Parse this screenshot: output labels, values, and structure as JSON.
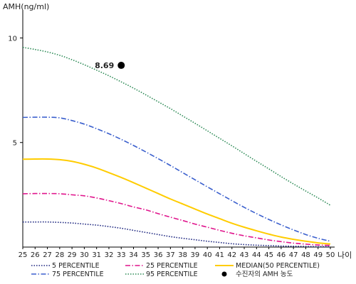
{
  "chart_data": {
    "type": "line",
    "ylabel": "AMH(ng/ml)",
    "xlabel": "나이",
    "xlim": [
      25,
      50
    ],
    "ylim": [
      0,
      11
    ],
    "yticks": [
      5,
      10
    ],
    "x": [
      25,
      26,
      27,
      28,
      29,
      30,
      31,
      32,
      33,
      34,
      35,
      36,
      37,
      38,
      39,
      40,
      41,
      42,
      43,
      44,
      45,
      46,
      47,
      48,
      49,
      50
    ],
    "series": [
      {
        "name": "5 PERCENTILE",
        "color": "#1a237e",
        "style": "dotted",
        "values": [
          1.2,
          1.2,
          1.2,
          1.18,
          1.15,
          1.1,
          1.05,
          0.98,
          0.9,
          0.8,
          0.7,
          0.6,
          0.5,
          0.42,
          0.35,
          0.28,
          0.22,
          0.16,
          0.12,
          0.09,
          0.07,
          0.05,
          0.04,
          0.03,
          0.02,
          0.02
        ]
      },
      {
        "name": "25 PERCENTILE",
        "color": "#e0148c",
        "style": "dashdot",
        "values": [
          2.55,
          2.56,
          2.56,
          2.55,
          2.5,
          2.45,
          2.35,
          2.22,
          2.08,
          1.92,
          1.78,
          1.6,
          1.43,
          1.27,
          1.1,
          0.95,
          0.8,
          0.66,
          0.54,
          0.44,
          0.34,
          0.26,
          0.19,
          0.14,
          0.1,
          0.08
        ]
      },
      {
        "name": "MEDIAN(50 PERCENTILE)",
        "color": "#ffcc00",
        "style": "solid",
        "values": [
          4.2,
          4.21,
          4.21,
          4.18,
          4.1,
          3.96,
          3.78,
          3.56,
          3.33,
          3.08,
          2.82,
          2.56,
          2.3,
          2.06,
          1.82,
          1.58,
          1.36,
          1.14,
          0.95,
          0.78,
          0.62,
          0.48,
          0.37,
          0.28,
          0.2,
          0.15
        ]
      },
      {
        "name": "75 PERCENTILE",
        "color": "#3a5fcd",
        "style": "dashdot",
        "values": [
          6.2,
          6.21,
          6.21,
          6.18,
          6.05,
          5.88,
          5.66,
          5.42,
          5.15,
          4.86,
          4.55,
          4.23,
          3.9,
          3.56,
          3.22,
          2.88,
          2.55,
          2.22,
          1.9,
          1.6,
          1.32,
          1.06,
          0.82,
          0.6,
          0.42,
          0.28
        ]
      },
      {
        "name": "95 PERCENTILE",
        "color": "#2e8b57",
        "style": "dotted",
        "values": [
          9.55,
          9.45,
          9.33,
          9.17,
          8.96,
          8.72,
          8.46,
          8.19,
          7.9,
          7.6,
          7.28,
          6.95,
          6.62,
          6.27,
          5.92,
          5.56,
          5.2,
          4.84,
          4.47,
          4.1,
          3.74,
          3.37,
          3.02,
          2.68,
          2.35,
          2.0
        ]
      }
    ],
    "point": {
      "name": "수진자의 AMH 농도",
      "x": 33,
      "y": 8.69,
      "label": "8.69",
      "color": "#000000"
    },
    "legend_position": "bottom"
  }
}
